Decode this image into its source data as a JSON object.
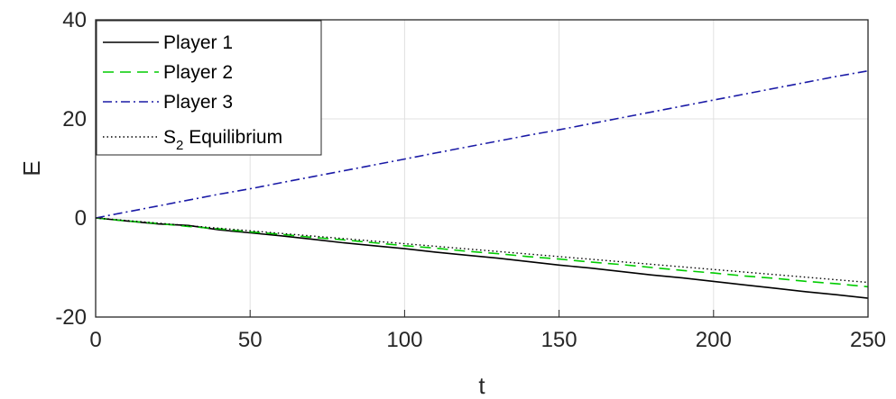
{
  "chart_data": {
    "type": "line",
    "title": "",
    "xlabel": "t",
    "ylabel": "E",
    "xlim": [
      0,
      250
    ],
    "ylim": [
      -20,
      40
    ],
    "xticks": [
      0,
      50,
      100,
      150,
      200,
      250
    ],
    "yticks": [
      -20,
      0,
      20,
      40
    ],
    "grid": true,
    "legend_position": "top-left",
    "series": [
      {
        "name": "Player 1",
        "color": "#000000",
        "style": "solid",
        "x": [
          0,
          10,
          20,
          30,
          40,
          50,
          60,
          70,
          80,
          90,
          100,
          110,
          120,
          130,
          140,
          150,
          160,
          170,
          180,
          190,
          200,
          210,
          220,
          230,
          240,
          250
        ],
        "y": [
          0,
          -0.6,
          -1.2,
          -1.5,
          -2.4,
          -3.0,
          -3.6,
          -4.3,
          -5.0,
          -5.6,
          -6.2,
          -6.9,
          -7.5,
          -8.1,
          -8.8,
          -9.5,
          -10.1,
          -10.8,
          -11.5,
          -12.1,
          -12.8,
          -13.5,
          -14.2,
          -14.9,
          -15.5,
          -16.2
        ]
      },
      {
        "name": "Player 2",
        "color": "#00cc00",
        "style": "dashed",
        "x": [
          0,
          10,
          20,
          30,
          40,
          50,
          60,
          70,
          80,
          90,
          100,
          110,
          120,
          130,
          140,
          150,
          160,
          170,
          180,
          190,
          200,
          210,
          220,
          230,
          240,
          250
        ],
        "y": [
          0,
          -0.6,
          -1.1,
          -1.7,
          -2.2,
          -2.8,
          -3.3,
          -3.9,
          -4.4,
          -5.0,
          -5.6,
          -6.1,
          -6.7,
          -7.2,
          -7.8,
          -8.3,
          -8.9,
          -9.4,
          -10.0,
          -10.6,
          -11.1,
          -11.7,
          -12.2,
          -12.8,
          -13.3,
          -13.9
        ]
      },
      {
        "name": "Player 3",
        "color": "#1a1aa6",
        "style": "dashdot",
        "x": [
          0,
          10,
          20,
          30,
          40,
          50,
          60,
          70,
          80,
          90,
          100,
          110,
          120,
          130,
          140,
          150,
          160,
          170,
          180,
          190,
          200,
          210,
          220,
          230,
          240,
          250
        ],
        "y": [
          0,
          1.2,
          2.4,
          3.6,
          4.8,
          5.9,
          7.1,
          8.3,
          9.5,
          10.7,
          11.9,
          13.1,
          14.3,
          15.5,
          16.7,
          17.8,
          19.0,
          20.2,
          21.4,
          22.6,
          23.8,
          25.0,
          26.2,
          27.4,
          28.6,
          29.7
        ]
      },
      {
        "name": "S_2 Equilibrium",
        "color": "#000000",
        "style": "dotted",
        "x": [
          0,
          250
        ],
        "y": [
          0,
          -13.0
        ]
      }
    ],
    "legend": {
      "items": [
        {
          "main": "Player 1",
          "sub": ""
        },
        {
          "main": "Player 2",
          "sub": ""
        },
        {
          "main": "Player 3",
          "sub": ""
        },
        {
          "main": "S",
          "sub": "2",
          "rest": " Equilibrium"
        }
      ]
    }
  }
}
